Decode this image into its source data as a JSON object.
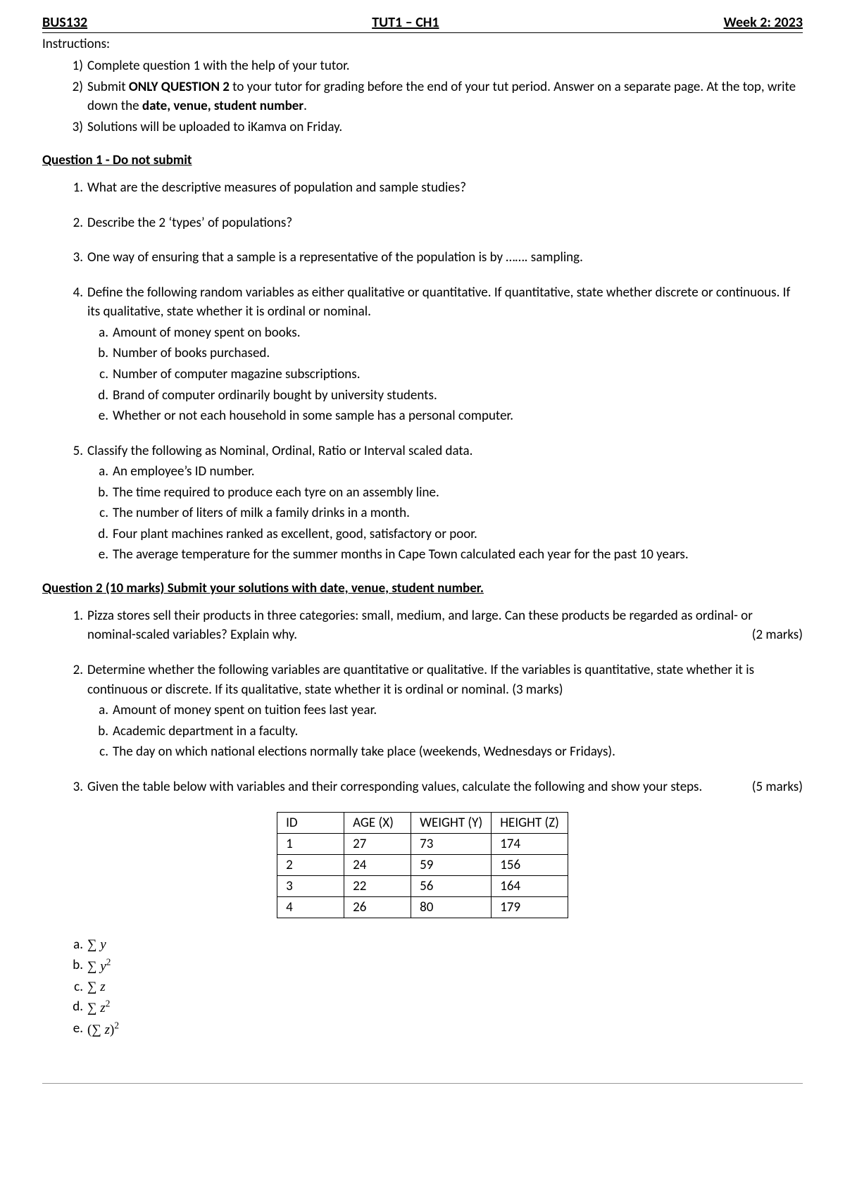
{
  "header": {
    "left": "BUS132",
    "center": "TUT1 – CH1",
    "right": "Week 2: 2023"
  },
  "instructions": {
    "label": "Instructions:",
    "items": [
      {
        "n": "1)",
        "html": "Complete question 1 with the help of your tutor."
      },
      {
        "n": "2)",
        "html": "Submit <b>ONLY QUESTION 2</b> to your tutor for grading before the end of your tut period. Answer on a separate page. At the top, write down the <b>date, venue, student number</b>."
      },
      {
        "n": "3)",
        "html": "Solutions will be uploaded to iKamva on Friday."
      }
    ]
  },
  "q1": {
    "heading": "Question 1 - Do not submit",
    "items": [
      {
        "n": "1.",
        "text": "What are the descriptive measures of population and sample studies?"
      },
      {
        "n": "2.",
        "text": "Describe the 2 ‘types’ of populations?"
      },
      {
        "n": "3.",
        "text": "One way of ensuring that a sample is a representative of the population is by ……. sampling."
      },
      {
        "n": "4.",
        "text": "Define the following random variables as either qualitative or quantitative. If quantitative, state whether discrete or continuous. If its qualitative, state whether it is ordinal or nominal.",
        "sub": [
          {
            "n": "a.",
            "text": "Amount of money spent on books."
          },
          {
            "n": "b.",
            "text": "Number of books purchased."
          },
          {
            "n": "c.",
            "text": "Number of computer magazine subscriptions."
          },
          {
            "n": "d.",
            "text": "Brand of computer ordinarily bought by university students."
          },
          {
            "n": "e.",
            "text": "Whether or not each household in some sample has a personal computer."
          }
        ]
      },
      {
        "n": "5.",
        "text": "Classify the following as Nominal, Ordinal, Ratio or Interval scaled data.",
        "sub": [
          {
            "n": "a.",
            "text": "An employee’s ID number."
          },
          {
            "n": "b.",
            "text": "The time required to produce each tyre on an assembly line."
          },
          {
            "n": "c.",
            "text": "The number of liters of milk a family drinks in a month."
          },
          {
            "n": "d.",
            "text": "Four plant machines ranked as excellent, good, satisfactory or poor."
          },
          {
            "n": "e.",
            "text": "The average temperature for the summer months in Cape Town calculated each year for the past 10 years."
          }
        ]
      }
    ]
  },
  "q2": {
    "heading": "Question 2 (10 marks) Submit your solutions with date, venue, student number.",
    "items": [
      {
        "n": "1.",
        "text": "Pizza stores sell their products in three categories: small, medium, and large. Can these products be regarded as ordinal- or nominal-scaled variables? Explain why.",
        "marks": "(2 marks)"
      },
      {
        "n": "2.",
        "text": "Determine whether the following variables are quantitative or qualitative. If the variables is quantitative, state whether it is continuous or discrete. If its qualitative, state whether it is ordinal or nominal. (3 marks)",
        "sub": [
          {
            "n": "a.",
            "text": "Amount of money spent on tuition fees last year."
          },
          {
            "n": "b.",
            "text": "Academic department in a faculty."
          },
          {
            "n": "c.",
            "text": "The day on which national elections normally take place (weekends, Wednesdays or Fridays)."
          }
        ]
      },
      {
        "n": "3.",
        "text": "Given the table below with variables and their corresponding values, calculate the following and show your steps.",
        "marks": "(5 marks)"
      }
    ]
  },
  "table": {
    "columns": [
      "ID",
      "AGE (X)",
      "WEIGHT (Y)",
      "HEIGHT (Z)"
    ],
    "rows": [
      [
        "1",
        "27",
        "73",
        "174"
      ],
      [
        "2",
        "24",
        "59",
        "156"
      ],
      [
        "3",
        "22",
        "56",
        "164"
      ],
      [
        "4",
        "26",
        "80",
        "179"
      ]
    ]
  },
  "formulas": [
    {
      "n": "a.",
      "html": "<span class='op'>∑</span> y"
    },
    {
      "n": "b.",
      "html": "<span class='op'>∑</span> y<sup><span class='op'>2</span></sup>"
    },
    {
      "n": "c.",
      "html": "<span class='op'>∑</span> z"
    },
    {
      "n": "d.",
      "html": "<span class='op'>∑</span> z<sup><span class='op'>2</span></sup>"
    },
    {
      "n": "e.",
      "html": "<span class='op'>(∑</span> z<span class='op'>)</span><sup><span class='op'>2</span></sup>"
    }
  ]
}
